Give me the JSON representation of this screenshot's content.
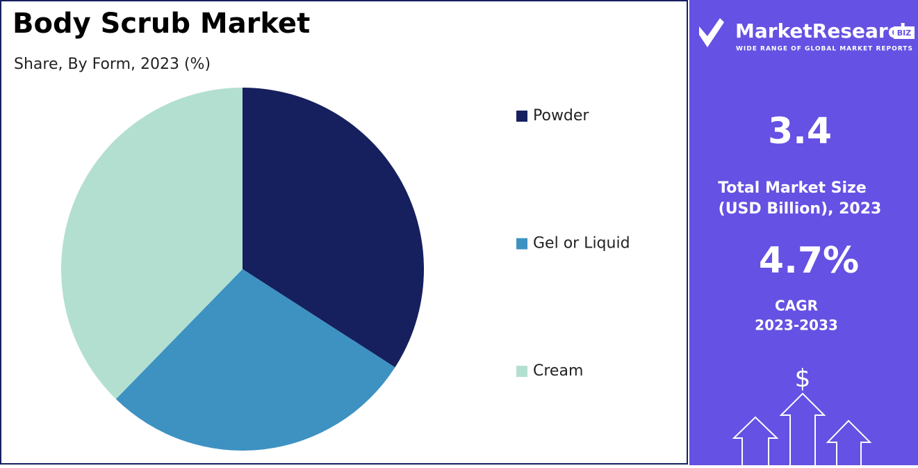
{
  "chart_data": {
    "type": "pie",
    "title": "Body Scrub Market",
    "subtitle": "Share, By Form, 2023 (%)",
    "categories": [
      "Powder",
      "Gel or Liquid",
      "Cream"
    ],
    "values": [
      34.1,
      28.2,
      37.7
    ],
    "colors": [
      "#16205e",
      "#3d92c2",
      "#b3dfd1"
    ],
    "legend": "right"
  },
  "side_panel": {
    "logo": {
      "name": "MarketResearch",
      "badge": "BIZ",
      "tagline": "WIDE RANGE OF GLOBAL MARKET REPORTS"
    },
    "market_size": {
      "value": "3.4",
      "label_lines": [
        "Total Market Size",
        "(USD Billion), 2023"
      ]
    },
    "cagr": {
      "value": "4.7%",
      "label_lines": [
        "CAGR",
        "2023-2033"
      ]
    },
    "icon_symbol": "$"
  }
}
